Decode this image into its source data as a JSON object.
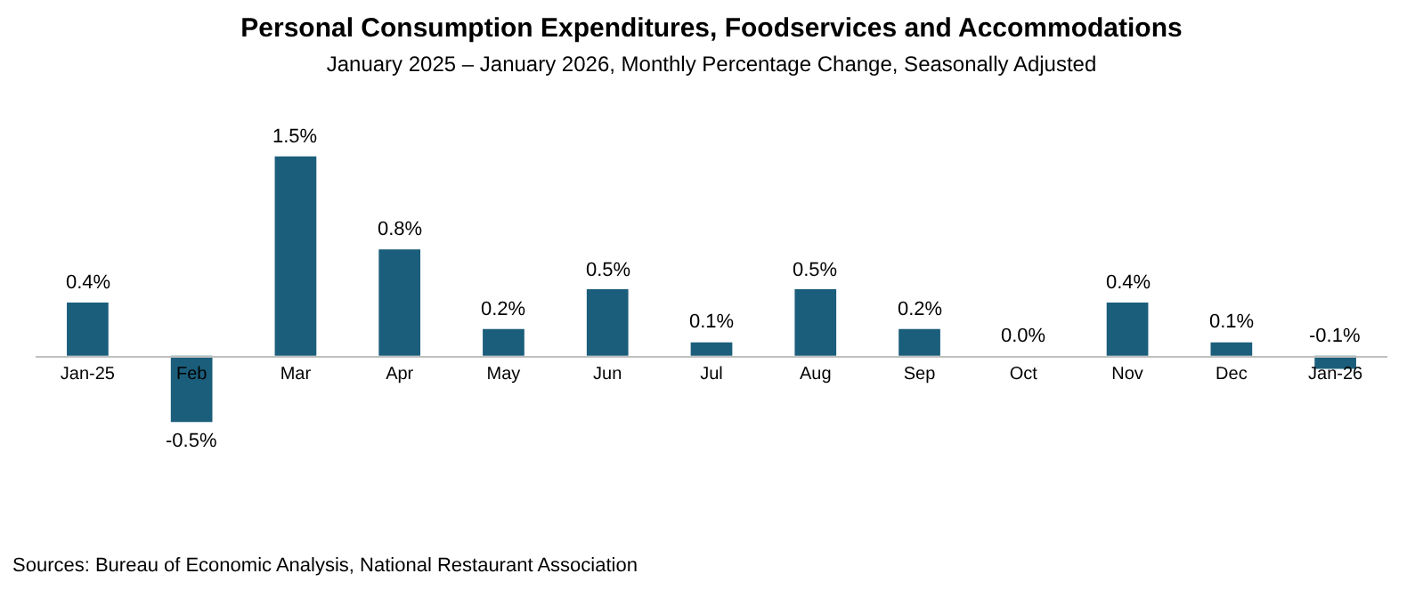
{
  "chart_data": {
    "type": "bar",
    "title": "Personal Consumption Expenditures, Foodservices and Accommodations",
    "subtitle": "January 2025 – January 2026, Monthly Percentage Change, Seasonally Adjusted",
    "categories": [
      "Jan-25",
      "Feb",
      "Mar",
      "Apr",
      "May",
      "Jun",
      "Jul",
      "Aug",
      "Sep",
      "Oct",
      "Nov",
      "Dec",
      "Jan-26"
    ],
    "values": [
      0.4,
      -0.5,
      1.5,
      0.8,
      0.2,
      0.5,
      0.1,
      0.5,
      0.2,
      0.0,
      0.4,
      0.1,
      -0.1
    ],
    "value_labels": [
      "0.4%",
      "-0.5%",
      "1.5%",
      "0.8%",
      "0.2%",
      "0.5%",
      "0.1%",
      "0.5%",
      "0.2%",
      "0.0%",
      "0.4%",
      "0.1%",
      "-0.1%"
    ],
    "color": "#1b5e7b",
    "annotations": [
      "Sources: Bureau of Economic Analysis, National Restaurant Association"
    ],
    "grid": false,
    "legend": false
  }
}
